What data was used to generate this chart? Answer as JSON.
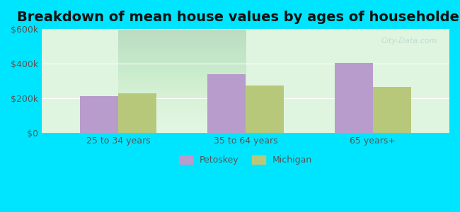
{
  "title": "Breakdown of mean house values by ages of householders",
  "categories": [
    "25 to 34 years",
    "35 to 64 years",
    "65 years+"
  ],
  "petoskey_values": [
    215000,
    340000,
    405000
  ],
  "michigan_values": [
    230000,
    275000,
    265000
  ],
  "ylim": [
    0,
    600000
  ],
  "yticks": [
    0,
    200000,
    400000,
    600000
  ],
  "ytick_labels": [
    "$0",
    "$200k",
    "$400k",
    "$600k"
  ],
  "petoskey_color": "#b89ccc",
  "michigan_color": "#b8c87a",
  "background_outer": "#00e5ff",
  "background_inner_top": "#e8f5e9",
  "background_inner_bottom": "#f0faf0",
  "title_fontsize": 14,
  "legend_labels": [
    "Petoskey",
    "Michigan"
  ],
  "bar_width": 0.3,
  "watermark": "City-Data.com"
}
